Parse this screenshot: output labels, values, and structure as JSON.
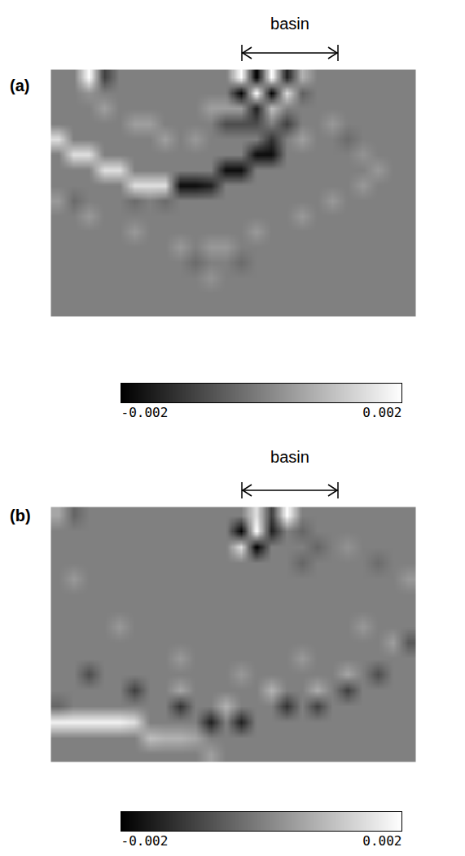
{
  "chart_data": [
    {
      "type": "heatmap",
      "title": "(a)",
      "annotations": [
        {
          "text": "basin"
        }
      ],
      "tick_labels": false,
      "cells": [
        [
          0,
          0,
          0.002,
          -0.001,
          0,
          0,
          0,
          0,
          0,
          0,
          0,
          0,
          0.002,
          -0.002,
          0.002,
          -0.0015,
          0.0008,
          0,
          0,
          0,
          0,
          0,
          0,
          0
        ],
        [
          0,
          0,
          0.0003,
          0,
          0,
          0,
          0,
          0,
          0,
          0,
          0,
          0,
          -0.002,
          0.002,
          -0.002,
          0.0015,
          -0.0005,
          0,
          0,
          0,
          0,
          0,
          0,
          0
        ],
        [
          0,
          0,
          0,
          0.0005,
          0,
          0,
          0,
          0,
          0,
          0,
          0.0005,
          0.0005,
          0.0005,
          -0.0015,
          0.001,
          0,
          0,
          0,
          0,
          0,
          0,
          0,
          0,
          0
        ],
        [
          0,
          0,
          0,
          0,
          0,
          0.0005,
          0.0005,
          0,
          0,
          0,
          0,
          -0.0008,
          -0.0008,
          -0.0008,
          0,
          -0.001,
          0,
          0,
          0.0004,
          0,
          0,
          0,
          0,
          0
        ],
        [
          0.0015,
          0,
          0,
          0,
          0,
          0,
          0,
          0.0005,
          0,
          0.0004,
          0,
          0,
          0,
          0,
          -0.0012,
          0,
          0.0005,
          0,
          0,
          -0.0003,
          0,
          0,
          0,
          0
        ],
        [
          0,
          0.0015,
          0.0015,
          0,
          0,
          0,
          0,
          0,
          0,
          0,
          0,
          0,
          0,
          -0.0018,
          -0.0018,
          0,
          0,
          0,
          0,
          0,
          0.0003,
          0,
          0,
          0
        ],
        [
          0,
          0,
          0,
          0.0015,
          0.0015,
          0,
          0,
          0,
          0,
          0,
          0,
          -0.0018,
          -0.0018,
          0,
          0,
          0,
          0,
          0,
          0,
          0,
          0,
          0.0004,
          0,
          0
        ],
        [
          0,
          0,
          0,
          0,
          0,
          0.0015,
          0.0015,
          0.0015,
          -0.0018,
          -0.0018,
          -0.0015,
          0,
          0,
          0,
          0,
          0,
          0,
          0,
          0,
          0,
          0.0004,
          0,
          0,
          0
        ],
        [
          0.0004,
          -0.0003,
          0,
          0,
          0,
          -0.0003,
          0,
          -0.0003,
          0,
          0,
          0,
          0,
          0,
          0,
          0,
          0,
          0,
          0,
          0.0004,
          0,
          0,
          0,
          0,
          0
        ],
        [
          0,
          0,
          0.0004,
          0,
          0,
          0,
          0,
          0,
          0,
          0,
          0,
          0,
          0,
          0,
          0,
          0,
          0.0004,
          0,
          0,
          0,
          0,
          0,
          0,
          0
        ],
        [
          0,
          0,
          0,
          0,
          0,
          0.0004,
          0,
          0,
          0,
          0,
          0,
          0,
          0,
          0.0004,
          0,
          0,
          0,
          0,
          0,
          0,
          0,
          0,
          0,
          0
        ],
        [
          0,
          0,
          0,
          0,
          0,
          0,
          0,
          0,
          0.0004,
          0,
          0.0004,
          0.0004,
          0,
          0,
          0,
          0,
          0,
          0,
          0,
          0,
          0,
          0,
          0,
          0
        ],
        [
          0,
          0,
          0,
          0,
          0,
          0,
          0,
          0,
          0,
          -0.0003,
          0,
          0,
          -0.0003,
          0,
          0,
          0,
          0,
          0,
          0,
          0,
          0,
          0,
          0,
          0
        ],
        [
          0,
          0,
          0,
          0,
          0,
          0,
          0,
          0,
          0,
          0,
          0.0003,
          0,
          0,
          0,
          0,
          0,
          0,
          0,
          0,
          0,
          0,
          0,
          0,
          0
        ],
        [
          0,
          0,
          0,
          0,
          0,
          0,
          0,
          0,
          0,
          0,
          0,
          0,
          0,
          0,
          0,
          0,
          0,
          0,
          0,
          0,
          0,
          0,
          0,
          0
        ],
        [
          0,
          0,
          0,
          0,
          0,
          0,
          0,
          0,
          0,
          0,
          0,
          0,
          0,
          0,
          0,
          0,
          0,
          0,
          0,
          0,
          0,
          0,
          0,
          0
        ]
      ],
      "colorbar_range": [
        -0.002,
        0.002
      ],
      "colorbar_ticks": [
        -0.002,
        0.002
      ]
    },
    {
      "type": "heatmap",
      "title": "(b)",
      "annotations": [
        {
          "text": "basin"
        }
      ],
      "tick_labels": false,
      "cells": [
        [
          0.0006,
          -0.0004,
          0,
          0,
          0,
          0,
          0,
          0,
          0,
          0,
          0,
          0,
          0,
          0.0015,
          -0.001,
          0.002,
          0,
          0,
          0,
          0,
          0,
          0,
          0,
          0
        ],
        [
          0,
          0,
          0,
          0,
          0,
          0,
          0,
          0,
          0,
          0,
          0,
          0,
          -0.002,
          0.002,
          -0.0015,
          0,
          -0.0004,
          0,
          0,
          0,
          0,
          0,
          0,
          0
        ],
        [
          0,
          0,
          0,
          0,
          0,
          0,
          0,
          0,
          0,
          0,
          0,
          0,
          0.0015,
          -0.002,
          0,
          0,
          0,
          -0.0004,
          0,
          0.0003,
          0,
          0,
          0,
          0
        ],
        [
          0,
          0,
          0,
          0,
          0,
          0,
          0,
          0,
          0,
          0,
          0,
          0,
          0,
          0,
          0,
          0,
          -0.0004,
          0,
          0,
          0,
          0,
          -0.0003,
          0,
          0
        ],
        [
          0,
          0.0004,
          0,
          0,
          0,
          0,
          0,
          0,
          0,
          0,
          0,
          0,
          0,
          0,
          0,
          0,
          0,
          0,
          0,
          0,
          0,
          0,
          0,
          0.0004
        ],
        [
          0,
          0,
          0,
          0,
          0,
          0,
          0,
          0,
          0,
          0,
          0,
          0,
          0,
          0,
          0,
          0,
          0,
          0,
          0,
          0,
          0,
          0,
          0,
          0
        ],
        [
          0,
          0,
          0,
          0,
          0,
          0,
          0,
          0,
          0,
          0,
          0,
          0,
          0,
          0,
          0,
          0,
          0,
          0,
          0,
          0,
          0,
          0,
          0,
          0
        ],
        [
          0,
          0,
          0,
          0,
          0.0004,
          0,
          0,
          0,
          0,
          0,
          0,
          0,
          0,
          0,
          0,
          0,
          0,
          0,
          0,
          0,
          0.0004,
          0,
          0,
          0
        ],
        [
          0,
          0,
          0,
          0,
          0,
          0,
          0,
          0,
          0,
          0,
          0,
          0,
          0,
          0,
          0,
          0,
          0,
          0,
          0,
          0,
          0,
          0,
          0.0005,
          -0.0006
        ],
        [
          0,
          0,
          0,
          0,
          0,
          0,
          0,
          0,
          0.0004,
          0,
          0,
          0,
          0,
          0,
          0,
          0,
          0.0004,
          0,
          0,
          0,
          0,
          0,
          0,
          0
        ],
        [
          0,
          0,
          -0.0008,
          0,
          0,
          0,
          0,
          0,
          0,
          0,
          0,
          0,
          0.0004,
          0,
          0,
          0,
          0,
          0,
          0,
          0.0006,
          0,
          -0.0008,
          0,
          0
        ],
        [
          0,
          0,
          0,
          0,
          0,
          -0.001,
          0,
          0,
          0.0006,
          0,
          0,
          0,
          0,
          0,
          0.0008,
          0,
          0,
          0.0007,
          0,
          -0.001,
          0,
          0,
          0,
          0
        ],
        [
          -0.0004,
          0,
          0,
          0,
          0,
          0,
          0,
          0,
          -0.0012,
          0,
          0,
          0.0008,
          0,
          0,
          0,
          -0.0012,
          0,
          -0.001,
          0,
          0,
          0,
          0,
          0,
          0
        ],
        [
          0.0018,
          0.0018,
          0.0018,
          0.0018,
          0.0018,
          0.0015,
          0,
          0,
          0,
          0,
          -0.0015,
          0,
          -0.0015,
          0,
          0,
          0,
          0,
          0,
          0,
          0,
          0,
          0,
          0,
          0
        ],
        [
          0,
          0,
          0,
          0,
          0,
          0,
          0.001,
          0.0008,
          0.0008,
          0.0006,
          0,
          0,
          0,
          0,
          0,
          0,
          0,
          0,
          0,
          0,
          0,
          0,
          0,
          0
        ],
        [
          0,
          0,
          0,
          0,
          0,
          0,
          0,
          0,
          0,
          0,
          0.0005,
          0,
          0,
          0,
          0,
          0,
          0,
          0,
          0,
          0,
          0,
          0,
          0,
          0
        ]
      ],
      "colorbar_range": [
        -0.002,
        0.002
      ],
      "colorbar_ticks": [
        -0.002,
        0.002
      ]
    }
  ]
}
